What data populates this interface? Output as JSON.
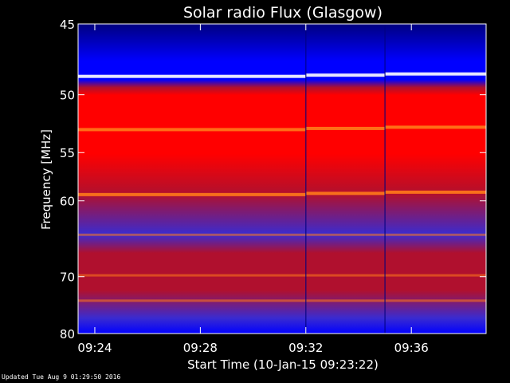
{
  "chart_data": {
    "type": "heatmap",
    "title": "Solar radio Flux (Glasgow)",
    "xlabel": "Start Time (10-Jan-15 09:23:22)",
    "ylabel": "Frequency [MHz]",
    "x_ticks": [
      "09:24",
      "09:28",
      "09:32",
      "09:36"
    ],
    "x_range": [
      "09:23:22",
      "09:38:50"
    ],
    "y_ticks": [
      45,
      50,
      55,
      60,
      70,
      80
    ],
    "ylim": [
      45,
      80
    ],
    "y_scale": "reciprocal",
    "colormap": [
      "#000080",
      "#0000ff",
      "#3a2bd0",
      "#b0102e",
      "#ff0000",
      "#ff7a1a",
      "#ffffff"
    ],
    "bright_lines_mhz": [
      48.6,
      52.9,
      59.3
    ],
    "interference_bands_mhz": [
      64.1,
      69.8,
      73.9
    ],
    "segment_boundaries": [
      "09:32",
      "09:35"
    ],
    "background_color": "#000000"
  },
  "footer_text": "Updated Tue Aug  9 01:29:50 2016"
}
